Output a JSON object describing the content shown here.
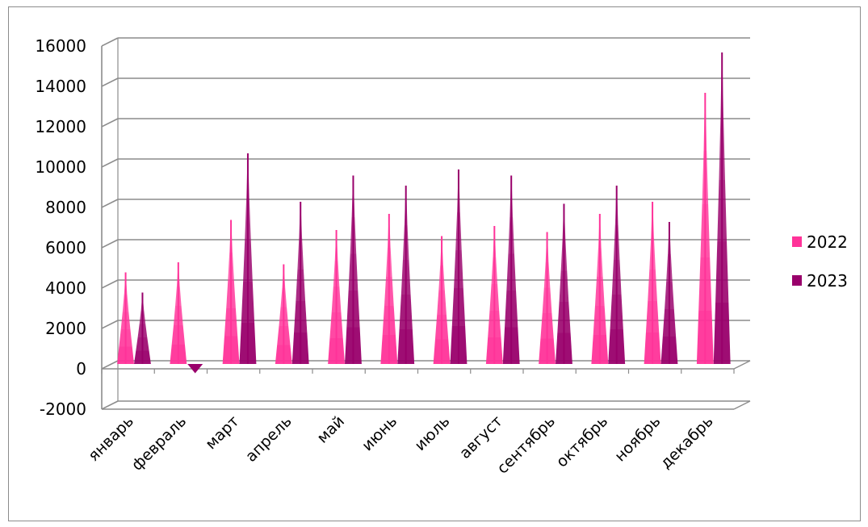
{
  "chart_data": {
    "type": "bar",
    "title": "",
    "xlabel": "",
    "ylabel": "",
    "ylim": [
      -2000,
      16000
    ],
    "yticks": [
      -2000,
      0,
      2000,
      4000,
      6000,
      8000,
      10000,
      12000,
      14000,
      16000
    ],
    "grid": true,
    "legend_position": "right",
    "categories": [
      "январь",
      "февраль",
      "март",
      "апрель",
      "май",
      "июнь",
      "июль",
      "август",
      "сентябрь",
      "октябрь",
      "ноябрь",
      "декабрь"
    ],
    "series": [
      {
        "name": "2022",
        "color": "#ff3399",
        "values": [
          4300,
          4800,
          6900,
          4700,
          6400,
          7200,
          6100,
          6600,
          6300,
          7200,
          7800,
          13200
        ]
      },
      {
        "name": "2023",
        "color": "#99006b",
        "values": [
          3300,
          -300,
          10200,
          7800,
          9100,
          8600,
          9400,
          9100,
          7700,
          8600,
          6800,
          15200
        ]
      }
    ]
  }
}
